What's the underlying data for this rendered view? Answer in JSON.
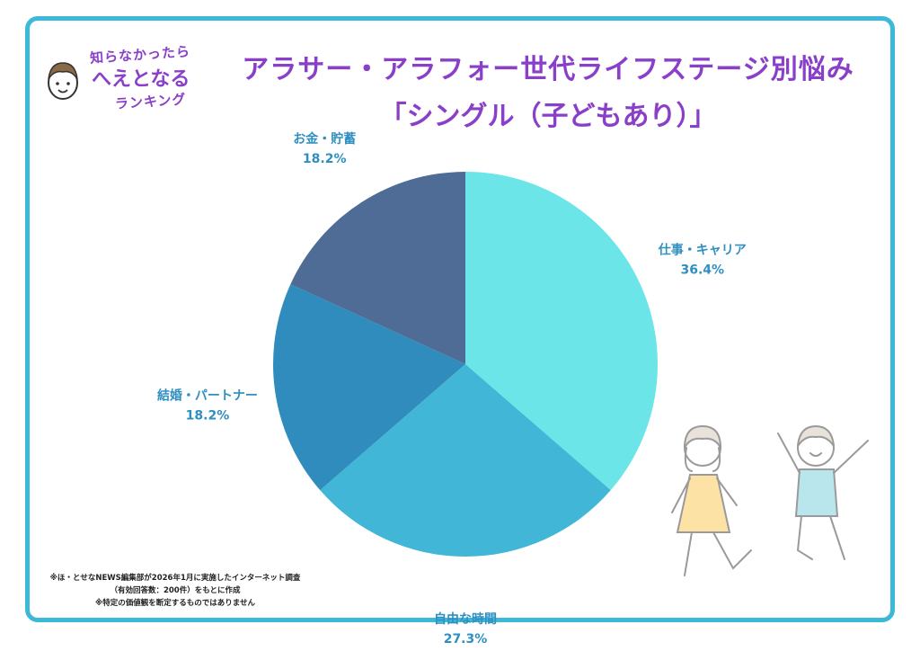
{
  "logo": {
    "line1": "知らなかったら",
    "line2": "へえとなる",
    "line3": "ランキング"
  },
  "title": {
    "main": "アラサー・アラフォー世代ライフステージ別悩み",
    "sub": "「シングル（子どもあり）」"
  },
  "chart_data": {
    "type": "pie",
    "start_angle_deg": 0,
    "direction": "clockwise",
    "slices": [
      {
        "label": "仕事・キャリア",
        "value": 36.4,
        "value_label": "36.4%",
        "color": "#6be5e8"
      },
      {
        "label": "自由な時間",
        "value": 27.3,
        "value_label": "27.3%",
        "color": "#41b6d6"
      },
      {
        "label": "結婚・パートナー",
        "value": 18.2,
        "value_label": "18.2%",
        "color": "#2f8cbd"
      },
      {
        "label": "お金・貯蓄",
        "value": 18.2,
        "value_label": "18.2%",
        "color": "#4f6c96"
      }
    ]
  },
  "footnote": {
    "line1": "※ほ・とせなNEWS編集部が2026年1月に実施したインターネット調査",
    "line2": "（有効回答数：200件）をもとに作成",
    "line3": "※特定の価値観を断定するものではありません"
  }
}
